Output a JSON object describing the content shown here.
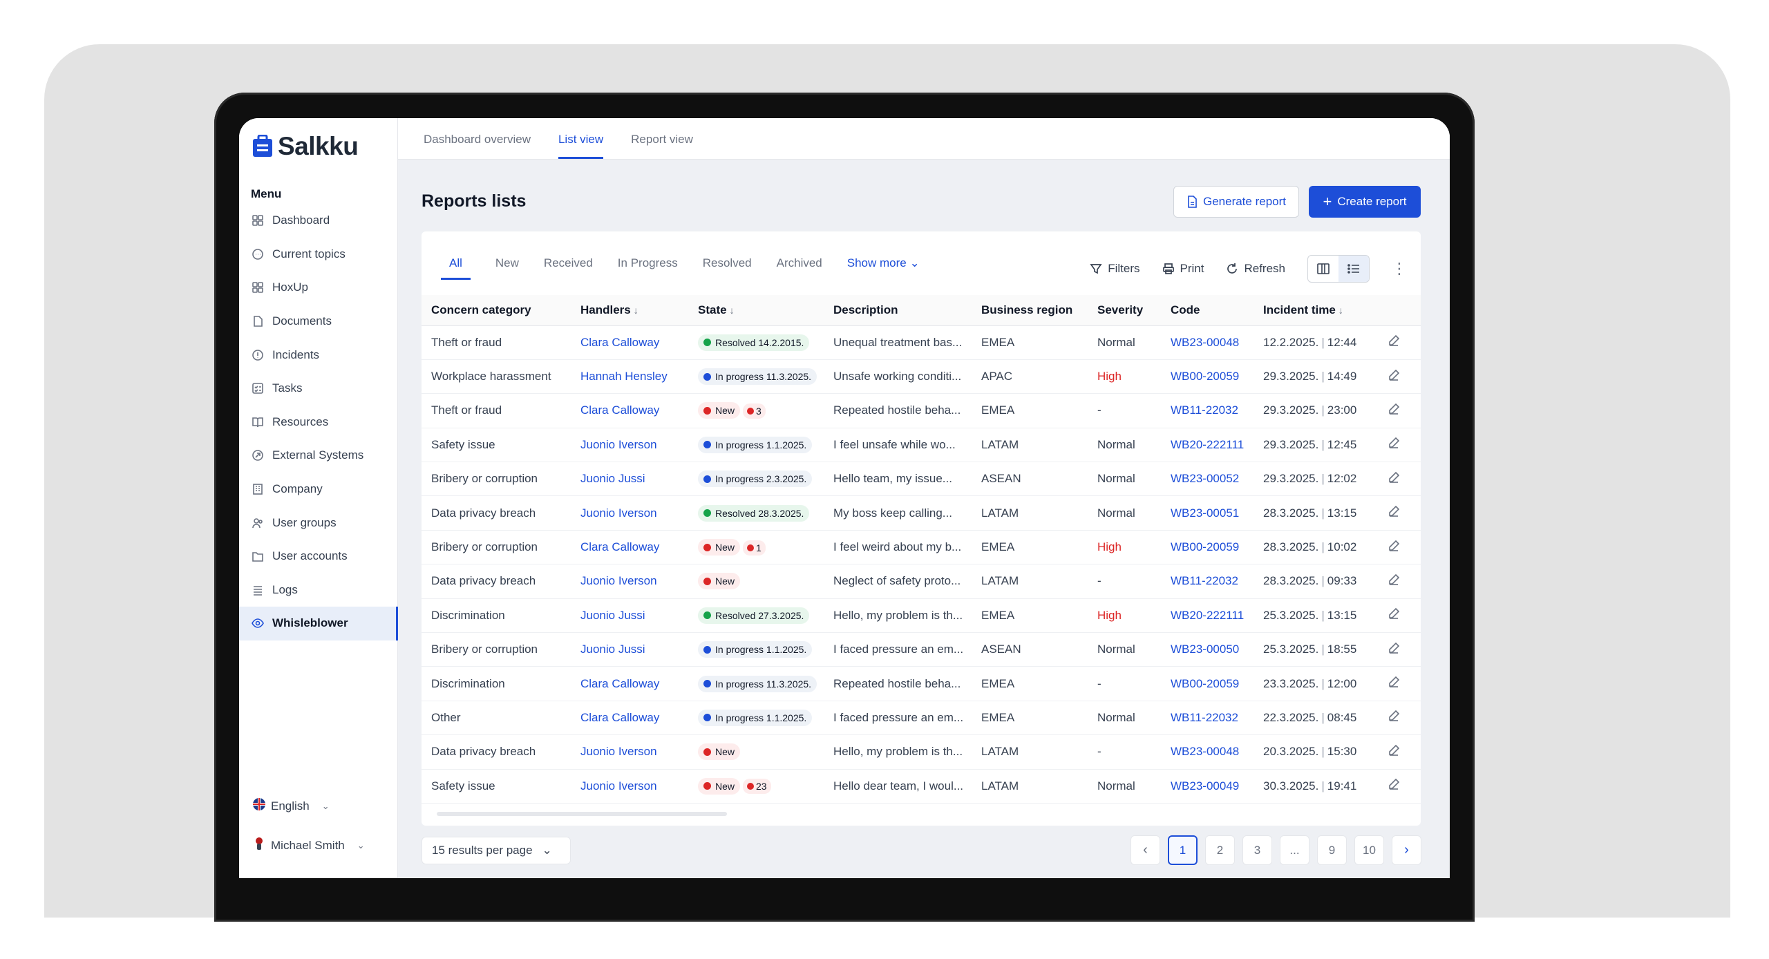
{
  "app": {
    "name": "Salkku"
  },
  "sidebar": {
    "menu_title": "Menu",
    "items": [
      {
        "label": "Dashboard",
        "icon": "grid-icon"
      },
      {
        "label": "Current topics",
        "icon": "chat-icon"
      },
      {
        "label": "HoxUp",
        "icon": "grid-icon"
      },
      {
        "label": "Documents",
        "icon": "document-icon"
      },
      {
        "label": "Incidents",
        "icon": "alert-icon"
      },
      {
        "label": "Tasks",
        "icon": "tasks-icon"
      },
      {
        "label": "Resources",
        "icon": "book-icon"
      },
      {
        "label": "External Systems",
        "icon": "external-icon"
      },
      {
        "label": "Company",
        "icon": "building-icon"
      },
      {
        "label": "User groups",
        "icon": "users-icon"
      },
      {
        "label": "User accounts",
        "icon": "folder-icon"
      },
      {
        "label": "Logs",
        "icon": "logs-icon"
      },
      {
        "label": "Whisleblower",
        "icon": "eye-icon",
        "active": true
      }
    ],
    "language": "English",
    "user": "Michael Smith"
  },
  "topnav": {
    "tabs": [
      "Dashboard overview",
      "List view",
      "Report view"
    ],
    "active": "List view"
  },
  "header": {
    "title": "Reports lists",
    "generate_label": "Generate report",
    "create_label": "Create report"
  },
  "filters": {
    "tabs": [
      "All",
      "New",
      "Received",
      "In Progress",
      "Resolved",
      "Archived"
    ],
    "active": "All",
    "show_more": "Show more",
    "filters_label": "Filters",
    "print_label": "Print",
    "refresh_label": "Refresh"
  },
  "table": {
    "columns": [
      "Concern category",
      "Handlers",
      "State",
      "Description",
      "Business region",
      "Severity",
      "Code",
      "Incident time"
    ],
    "rows": [
      {
        "category": "Theft or fraud",
        "handler": "Clara Calloway",
        "state": "resolved",
        "state_label": "Resolved 14.2.2015.",
        "comments": "",
        "description": "Unequal treatment bas...",
        "region": "EMEA",
        "severity": "Normal",
        "code": "WB23-00048",
        "date": "12.2.2025.",
        "time": "12:44"
      },
      {
        "category": "Workplace harassment",
        "handler": "Hannah Hensley",
        "state": "progress",
        "state_label": "In progress 11.3.2025.",
        "comments": "",
        "description": "Unsafe working conditi...",
        "region": "APAC",
        "severity": "High",
        "code": "WB00-20059",
        "date": "29.3.2025.",
        "time": "14:49"
      },
      {
        "category": "Theft or fraud",
        "handler": "Clara Calloway",
        "state": "new",
        "state_label": "New",
        "comments": "3",
        "description": "Repeated hostile beha...",
        "region": "EMEA",
        "severity": "-",
        "code": "WB11-22032",
        "date": "29.3.2025.",
        "time": "23:00"
      },
      {
        "category": "Safety issue",
        "handler": "Juonio Iverson",
        "state": "progress",
        "state_label": "In progress 1.1.2025.",
        "comments": "",
        "description": "I feel unsafe while wo...",
        "region": "LATAM",
        "severity": "Normal",
        "code": "WB20-222111",
        "date": "29.3.2025.",
        "time": "12:45"
      },
      {
        "category": "Bribery or corruption",
        "handler": "Juonio Jussi",
        "state": "progress",
        "state_label": "In progress 2.3.2025.",
        "comments": "",
        "description": "Hello team, my issue...",
        "region": "ASEAN",
        "severity": "Normal",
        "code": "WB23-00052",
        "date": "29.3.2025.",
        "time": "12:02"
      },
      {
        "category": "Data privacy breach",
        "handler": "Juonio Iverson",
        "state": "resolved",
        "state_label": "Resolved 28.3.2025.",
        "comments": "",
        "description": "My boss keep calling...",
        "region": "LATAM",
        "severity": "Normal",
        "code": "WB23-00051",
        "date": "28.3.2025.",
        "time": "13:15"
      },
      {
        "category": "Bribery or corruption",
        "handler": "Clara Calloway",
        "state": "new",
        "state_label": "New",
        "comments": "1",
        "description": "I feel weird about my b...",
        "region": "EMEA",
        "severity": "High",
        "code": "WB00-20059",
        "date": "28.3.2025.",
        "time": "10:02"
      },
      {
        "category": "Data privacy breach",
        "handler": "Juonio Iverson",
        "state": "new",
        "state_label": "New",
        "comments": "",
        "description": "Neglect of safety proto...",
        "region": "LATAM",
        "severity": "-",
        "code": "WB11-22032",
        "date": "28.3.2025.",
        "time": "09:33"
      },
      {
        "category": "Discrimination",
        "handler": "Juonio Jussi",
        "state": "resolved",
        "state_label": "Resolved 27.3.2025.",
        "comments": "",
        "description": "Hello, my problem is th...",
        "region": "EMEA",
        "severity": "High",
        "code": "WB20-222111",
        "date": "25.3.2025.",
        "time": "13:15"
      },
      {
        "category": "Bribery or corruption",
        "handler": "Juonio Jussi",
        "state": "progress",
        "state_label": "In progress 1.1.2025.",
        "comments": "",
        "description": "I faced pressure an em...",
        "region": "ASEAN",
        "severity": "Normal",
        "code": "WB23-00050",
        "date": "25.3.2025.",
        "time": "18:55"
      },
      {
        "category": "Discrimination",
        "handler": "Clara Calloway",
        "state": "progress",
        "state_label": "In progress 11.3.2025.",
        "comments": "",
        "description": "Repeated hostile beha...",
        "region": "EMEA",
        "severity": "-",
        "code": "WB00-20059",
        "date": "23.3.2025.",
        "time": "12:00"
      },
      {
        "category": "Other",
        "handler": "Clara Calloway",
        "state": "progress",
        "state_label": "In progress 1.1.2025.",
        "comments": "",
        "description": "I faced pressure an em...",
        "region": "EMEA",
        "severity": "Normal",
        "code": "WB11-22032",
        "date": "22.3.2025.",
        "time": "08:45"
      },
      {
        "category": "Data privacy breach",
        "handler": "Juonio Iverson",
        "state": "new",
        "state_label": "New",
        "comments": "",
        "description": "Hello, my problem is th...",
        "region": "LATAM",
        "severity": "-",
        "code": "WB23-00048",
        "date": "20.3.2025.",
        "time": "15:30"
      },
      {
        "category": "Safety issue",
        "handler": "Juonio Iverson",
        "state": "new",
        "state_label": "New",
        "comments": "23",
        "description": "Hello dear team, I woul...",
        "region": "LATAM",
        "severity": "Normal",
        "code": "WB23-00049",
        "date": "30.3.2025.",
        "time": "19:41"
      }
    ]
  },
  "pagination": {
    "per_page_label": "15 results per page",
    "pages": [
      "1",
      "2",
      "3",
      "...",
      "9",
      "10"
    ],
    "current": "1"
  },
  "colors": {
    "accent": "#1d4ed8",
    "high": "#dc2626",
    "resolved": "#16a34a"
  }
}
